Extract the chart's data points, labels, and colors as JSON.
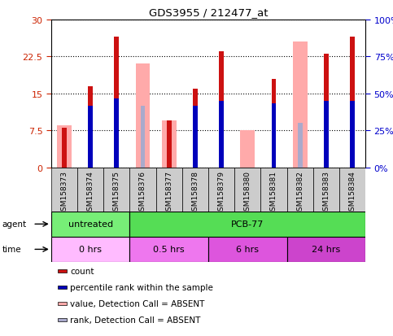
{
  "title": "GDS3955 / 212477_at",
  "samples": [
    "GSM158373",
    "GSM158374",
    "GSM158375",
    "GSM158376",
    "GSM158377",
    "GSM158378",
    "GSM158379",
    "GSM158380",
    "GSM158381",
    "GSM158382",
    "GSM158383",
    "GSM158384"
  ],
  "red_heights": [
    8.0,
    16.5,
    26.5,
    0.0,
    9.5,
    16.0,
    23.5,
    0.0,
    18.0,
    0.0,
    23.0,
    26.5
  ],
  "pink_heights": [
    8.5,
    0.0,
    0.0,
    21.0,
    9.5,
    0.0,
    0.0,
    7.5,
    0.0,
    25.5,
    0.0,
    0.0
  ],
  "blue_heights": [
    0.0,
    12.5,
    14.0,
    0.0,
    0.0,
    12.5,
    13.5,
    0.0,
    13.0,
    0.0,
    13.5,
    13.5
  ],
  "lightblue_heights": [
    7.5,
    0.0,
    0.0,
    12.5,
    6.5,
    0.0,
    0.0,
    0.0,
    0.0,
    9.0,
    0.0,
    0.0
  ],
  "ylim": [
    0,
    30
  ],
  "yticks_left": [
    0,
    7.5,
    15,
    22.5,
    30
  ],
  "ytick_left_labels": [
    "0",
    "7.5",
    "15",
    "22.5",
    "30"
  ],
  "yticks_right": [
    0,
    25,
    50,
    75,
    100
  ],
  "y_right_labels": [
    "0%",
    "25%",
    "50%",
    "75%",
    "100%"
  ],
  "agent_groups": [
    {
      "label": "untreated",
      "start": 0,
      "end": 3,
      "color": "#77ee77"
    },
    {
      "label": "PCB-77",
      "start": 3,
      "end": 12,
      "color": "#55dd55"
    }
  ],
  "time_groups": [
    {
      "label": "0 hrs",
      "start": 0,
      "end": 3,
      "color": "#ffbbff"
    },
    {
      "label": "0.5 hrs",
      "start": 3,
      "end": 6,
      "color": "#ee77ee"
    },
    {
      "label": "6 hrs",
      "start": 6,
      "end": 9,
      "color": "#dd55dd"
    },
    {
      "label": "24 hrs",
      "start": 9,
      "end": 12,
      "color": "#cc44cc"
    }
  ],
  "red_color": "#cc1111",
  "pink_color": "#ffaaaa",
  "blue_color": "#0000bb",
  "lightblue_color": "#aaaacc",
  "left_axis_color": "#cc2200",
  "right_axis_color": "#0000cc",
  "tick_bg_color": "#cccccc",
  "legend_items": [
    {
      "color": "#cc1111",
      "label": "count"
    },
    {
      "color": "#0000bb",
      "label": "percentile rank within the sample"
    },
    {
      "color": "#ffaaaa",
      "label": "value, Detection Call = ABSENT"
    },
    {
      "color": "#aaaacc",
      "label": "rank, Detection Call = ABSENT"
    }
  ]
}
